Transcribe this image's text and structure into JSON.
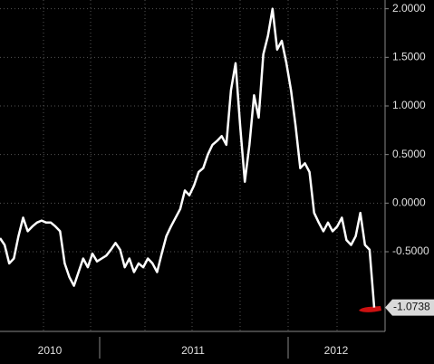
{
  "chart_data": {
    "type": "line",
    "x_labels": [
      "2010",
      "2011",
      "2012"
    ],
    "series": [
      {
        "color": "#ffffff",
        "values": [
          -0.36,
          -0.43,
          -0.62,
          -0.57,
          -0.34,
          -0.15,
          -0.29,
          -0.24,
          -0.2,
          -0.18,
          -0.2,
          -0.2,
          -0.24,
          -0.29,
          -0.62,
          -0.76,
          -0.85,
          -0.71,
          -0.57,
          -0.66,
          -0.52,
          -0.6,
          -0.57,
          -0.54,
          -0.48,
          -0.41,
          -0.48,
          -0.66,
          -0.57,
          -0.71,
          -0.62,
          -0.66,
          -0.57,
          -0.62,
          -0.71,
          -0.52,
          -0.34,
          -0.24,
          -0.15,
          -0.06,
          0.13,
          0.08,
          0.18,
          0.32,
          0.36,
          0.5,
          0.6,
          0.64,
          0.69,
          0.6,
          1.16,
          1.44,
          0.79,
          0.22,
          0.6,
          1.11,
          0.88,
          1.53,
          1.72,
          2.0,
          1.58,
          1.67,
          1.44,
          1.16,
          0.79,
          0.36,
          0.41,
          0.32,
          -0.1,
          -0.2,
          -0.29,
          -0.2,
          -0.29,
          -0.24,
          -0.15,
          -0.38,
          -0.43,
          -0.34,
          -0.1,
          -0.43,
          -0.48,
          -1.0738
        ]
      }
    ],
    "ylim": [
      -1.32,
      2.09
    ],
    "yticks": [
      {
        "value": 2,
        "label": "2.0000"
      },
      {
        "value": 1.5,
        "label": "1.5000"
      },
      {
        "value": 1,
        "label": "1.0000"
      },
      {
        "value": 0.5,
        "label": "0.5000"
      },
      {
        "value": 0,
        "label": "0.0000"
      },
      {
        "value": -0.5,
        "label": "-0.5000"
      }
    ],
    "grid": true
  }
}
